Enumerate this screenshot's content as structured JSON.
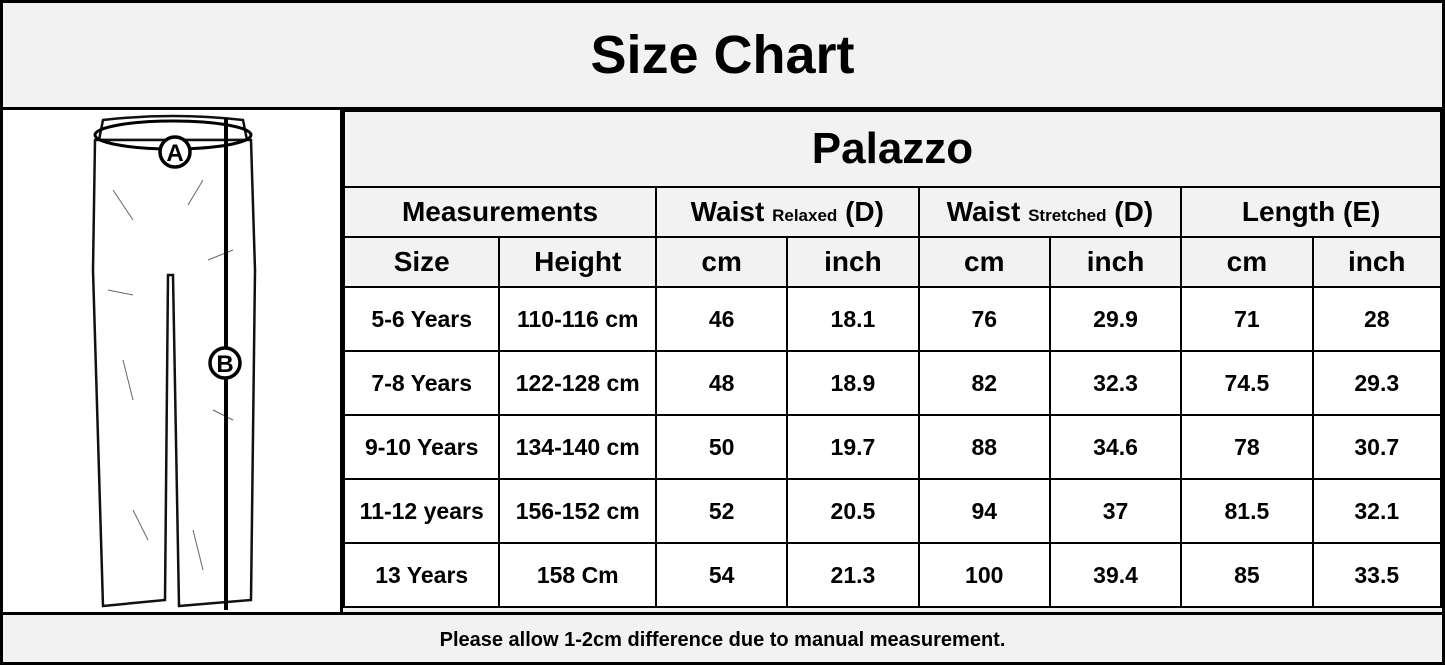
{
  "title": "Size Chart",
  "product": "Palazzo",
  "illustration": {
    "marker_a": "A",
    "marker_b": "B"
  },
  "headers": {
    "measurements": "Measurements",
    "waist_relaxed": {
      "main": "Waist",
      "sub": "Relaxed",
      "code": "(D)"
    },
    "waist_stretched": {
      "main": "Waist",
      "sub": "Stretched",
      "code": "(D)"
    },
    "length": "Length (E)",
    "sub": [
      "Size",
      "Height",
      "cm",
      "inch",
      "cm",
      "inch",
      "cm",
      "inch"
    ]
  },
  "rows": [
    [
      "5-6 Years",
      "110-116 cm",
      "46",
      "18.1",
      "76",
      "29.9",
      "71",
      "28"
    ],
    [
      "7-8 Years",
      "122-128 cm",
      "48",
      "18.9",
      "82",
      "32.3",
      "74.5",
      "29.3"
    ],
    [
      "9-10 Years",
      "134-140 cm",
      "50",
      "19.7",
      "88",
      "34.6",
      "78",
      "30.7"
    ],
    [
      "11-12 years",
      "156-152 cm",
      "52",
      "20.5",
      "94",
      "37",
      "81.5",
      "32.1"
    ],
    [
      "13 Years",
      "158 Cm",
      "54",
      "21.3",
      "100",
      "39.4",
      "85",
      "33.5"
    ]
  ],
  "footer": "Please allow 1-2cm difference due to manual measurement."
}
